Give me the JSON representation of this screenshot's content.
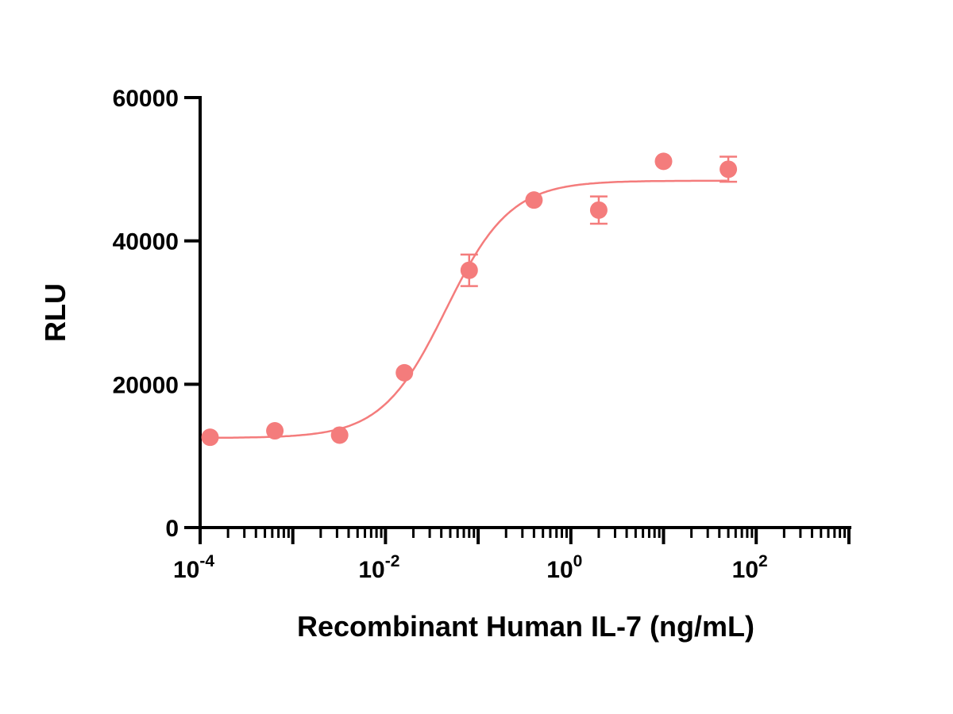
{
  "chart_data": {
    "type": "scatter",
    "title": "",
    "xlabel": "Recombinant Human IL-7 (ng/mL)",
    "ylabel": "RLU",
    "xscale": "log10",
    "xlim": [
      0.0001,
      1000
    ],
    "ylim": [
      0,
      60000
    ],
    "x_ticks": [
      {
        "exp": -4,
        "base": "10",
        "sup": "-4"
      },
      {
        "exp": -2,
        "base": "10",
        "sup": "-2"
      },
      {
        "exp": 0,
        "base": "10",
        "sup": "0"
      },
      {
        "exp": 2,
        "base": "10",
        "sup": "2"
      }
    ],
    "y_ticks": [
      {
        "value": 0,
        "label": "0"
      },
      {
        "value": 20000,
        "label": "20000"
      },
      {
        "value": 40000,
        "label": "40000"
      },
      {
        "value": 60000,
        "label": "60000"
      }
    ],
    "grid": false,
    "color": "#F47C7C",
    "series": [
      {
        "name": "IL-7",
        "x": [
          0.000128,
          0.00064,
          0.0032,
          0.016,
          0.08,
          0.4,
          2,
          10,
          50
        ],
        "y": [
          12600,
          13500,
          12900,
          21600,
          35900,
          45700,
          44300,
          51100,
          50000
        ],
        "error": [
          0,
          0,
          0,
          0,
          2200,
          0,
          1900,
          0,
          1750
        ]
      }
    ],
    "fit": {
      "model": "4PL",
      "bottom": 12500,
      "top": 48400,
      "ec50": 0.045,
      "hill": 1.25
    }
  }
}
